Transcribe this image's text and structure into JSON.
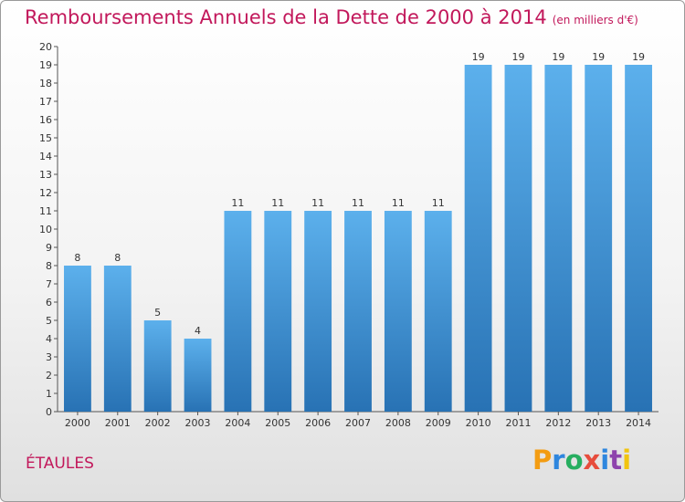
{
  "header": {
    "title": "Remboursements Annuels de la Dette de 2000 à 2014",
    "subtitle": "(en milliers d'€)"
  },
  "footer": {
    "commune": "ÉTAULES",
    "brand_letters": [
      "P",
      "r",
      "o",
      "x",
      "i",
      "t",
      "i"
    ]
  },
  "chart_data": {
    "type": "bar",
    "categories": [
      "2000",
      "2001",
      "2002",
      "2003",
      "2004",
      "2005",
      "2006",
      "2007",
      "2008",
      "2009",
      "2010",
      "2011",
      "2012",
      "2013",
      "2014"
    ],
    "values": [
      8,
      8,
      5,
      4,
      11,
      11,
      11,
      11,
      11,
      11,
      19,
      19,
      19,
      19,
      19
    ],
    "title": "Remboursements Annuels de la Dette de 2000 à 2014",
    "subtitle": "(en milliers d'€)",
    "ylim": [
      0,
      20
    ],
    "yticks": [
      0,
      1,
      2,
      3,
      4,
      5,
      6,
      7,
      8,
      9,
      10,
      11,
      12,
      13,
      14,
      15,
      16,
      17,
      18,
      19,
      20
    ],
    "grid": false,
    "data_labels": true,
    "bar_color": "#3d8fd6",
    "title_color": "#c2185b"
  }
}
